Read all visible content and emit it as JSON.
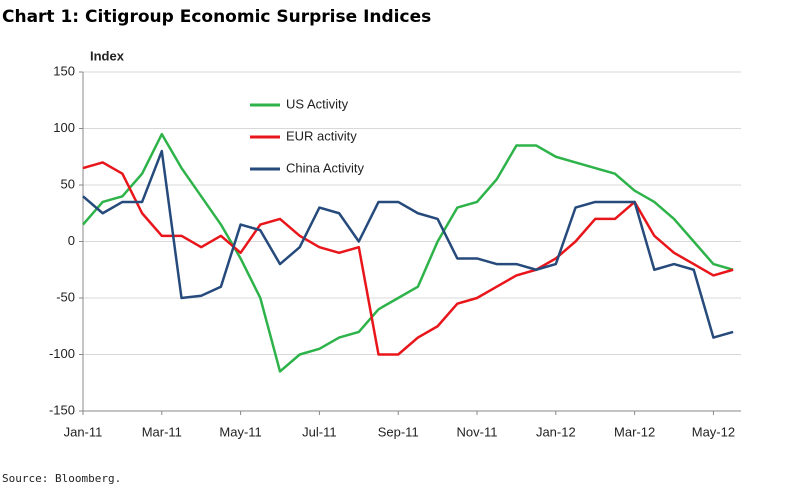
{
  "chart_data": {
    "type": "line",
    "title": "Chart 1: Citigroup Economic Surprise Indices",
    "y_label": "Index",
    "source": "Source:  Bloomberg.",
    "x": [
      0,
      0.5,
      1,
      1.5,
      2,
      2.5,
      3,
      3.5,
      4,
      4.5,
      5,
      5.5,
      6,
      6.5,
      7,
      7.5,
      8,
      8.5,
      9,
      9.5,
      10,
      10.5,
      11,
      11.5,
      12,
      12.5,
      13,
      13.5,
      14,
      14.5,
      15,
      15.5,
      16,
      16.5
    ],
    "xlim": [
      0,
      16.7
    ],
    "xticks": [
      {
        "value": 0,
        "label": "Jan-11"
      },
      {
        "value": 2,
        "label": "Mar-11"
      },
      {
        "value": 4,
        "label": "May-11"
      },
      {
        "value": 6,
        "label": "Jul-11"
      },
      {
        "value": 8,
        "label": "Sep-11"
      },
      {
        "value": 10,
        "label": "Nov-11"
      },
      {
        "value": 12,
        "label": "Jan-12"
      },
      {
        "value": 14,
        "label": "Mar-12"
      },
      {
        "value": 16,
        "label": "May-12"
      }
    ],
    "ylim": [
      -150,
      150
    ],
    "yticks": [
      -150,
      -100,
      -50,
      0,
      50,
      100,
      150
    ],
    "grid": true,
    "series": [
      {
        "name": "US Activity",
        "color": "#2eb34a",
        "values": [
          15,
          35,
          40,
          60,
          95,
          65,
          40,
          15,
          -15,
          -50,
          -115,
          -100,
          -95,
          -85,
          -80,
          -60,
          -50,
          -40,
          0,
          30,
          35,
          55,
          85,
          85,
          75,
          70,
          65,
          60,
          45,
          35,
          20,
          0,
          -20,
          -25
        ]
      },
      {
        "name": "EUR activity",
        "color": "#e8161b",
        "values": [
          65,
          70,
          60,
          25,
          5,
          5,
          -5,
          5,
          -10,
          15,
          20,
          5,
          -5,
          -10,
          -5,
          -100,
          -100,
          -85,
          -75,
          -55,
          -50,
          -40,
          -30,
          -25,
          -15,
          0,
          20,
          20,
          35,
          5,
          -10,
          -20,
          -30,
          -25
        ]
      },
      {
        "name": "China Activity",
        "color": "#254a7b",
        "values": [
          40,
          25,
          35,
          35,
          80,
          -50,
          -48,
          -40,
          15,
          10,
          -20,
          -5,
          30,
          25,
          0,
          35,
          35,
          25,
          20,
          -15,
          -15,
          -20,
          -20,
          -25,
          -20,
          30,
          35,
          35,
          35,
          -25,
          -20,
          -25,
          -85,
          -80
        ]
      }
    ]
  }
}
